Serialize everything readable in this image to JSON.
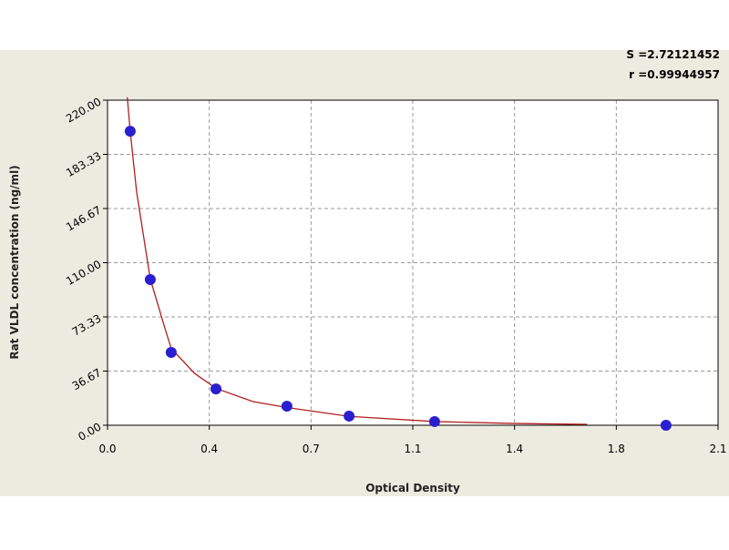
{
  "chart_data": {
    "type": "scatter",
    "annotations": [
      "S =2.72121452",
      "r =0.99944957"
    ],
    "x_label": "Optical Density",
    "y_label": "Rat VLDL concentration (ng/ml)",
    "xlim": [
      0,
      2.1
    ],
    "xticks": [
      {
        "value": 0,
        "label": "0.0"
      },
      {
        "value": 0.35,
        "label": "0.4"
      },
      {
        "value": 0.7,
        "label": "0.7"
      },
      {
        "value": 1.05,
        "label": "1.1"
      },
      {
        "value": 1.4,
        "label": "1.4"
      },
      {
        "value": 1.75,
        "label": "1.8"
      },
      {
        "value": 2.1,
        "label": "2.1"
      }
    ],
    "ylim": [
      0,
      220
    ],
    "yticks": [
      {
        "value": 0,
        "label": "0.00"
      },
      {
        "value": 36.67,
        "label": "36.67"
      },
      {
        "value": 73.33,
        "label": "73.33"
      },
      {
        "value": 110,
        "label": "110.00"
      },
      {
        "value": 146.67,
        "label": "146.67"
      },
      {
        "value": 183.33,
        "label": "183.33"
      },
      {
        "value": 220,
        "label": "220.00"
      }
    ],
    "grid": true,
    "series": [
      {
        "color": "#2a1fd0",
        "x": [
          0.078,
          0.147,
          0.219,
          0.373,
          0.617,
          0.831,
          1.125,
          1.921
        ],
        "values": [
          199,
          98.6,
          49.3,
          24.6,
          12.9,
          6.2,
          2.5,
          0
        ]
      },
      {
        "color": "#b02020",
        "x": [
          0.068,
          0.078,
          0.1,
          0.147,
          0.2,
          0.219,
          0.3,
          0.373,
          0.5,
          0.617,
          0.831,
          1.125,
          1.4,
          1.65
        ],
        "values": [
          222,
          199,
          158,
          99,
          64,
          52,
          35,
          25,
          16,
          12,
          6,
          2.5,
          1.2,
          0.6
        ]
      }
    ]
  }
}
